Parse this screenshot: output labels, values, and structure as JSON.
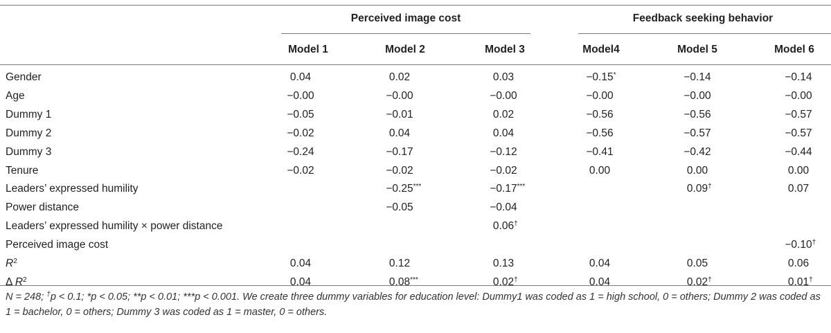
{
  "table": {
    "group_headers": [
      "Perceived image cost",
      "Feedback seeking behavior"
    ],
    "model_headers": [
      "Model 1",
      "Model 2",
      "Model 3",
      "Model4",
      "Model 5",
      "Model 6"
    ],
    "rows": [
      {
        "label": "Gender",
        "label_sup": "",
        "cells": [
          [
            "0.04",
            ""
          ],
          [
            "0.02",
            ""
          ],
          [
            "0.03",
            ""
          ],
          [
            "−0.15",
            "*"
          ],
          [
            "−0.14",
            ""
          ],
          [
            "−0.14",
            ""
          ]
        ]
      },
      {
        "label": "Age",
        "label_sup": "",
        "cells": [
          [
            "−0.00",
            ""
          ],
          [
            "−0.00",
            ""
          ],
          [
            "−0.00",
            ""
          ],
          [
            "−0.00",
            ""
          ],
          [
            "−0.00",
            ""
          ],
          [
            "−0.00",
            ""
          ]
        ]
      },
      {
        "label": "Dummy 1",
        "label_sup": "",
        "cells": [
          [
            "−0.05",
            ""
          ],
          [
            "−0.01",
            ""
          ],
          [
            "0.02",
            ""
          ],
          [
            "−0.56",
            ""
          ],
          [
            "−0.56",
            ""
          ],
          [
            "−0.57",
            ""
          ]
        ]
      },
      {
        "label": "Dummy 2",
        "label_sup": "",
        "cells": [
          [
            "−0.02",
            ""
          ],
          [
            "0.04",
            ""
          ],
          [
            "0.04",
            ""
          ],
          [
            "−0.56",
            ""
          ],
          [
            "−0.57",
            ""
          ],
          [
            "−0.57",
            ""
          ]
        ]
      },
      {
        "label": "Dummy 3",
        "label_sup": "",
        "cells": [
          [
            "−0.24",
            ""
          ],
          [
            "−0.17",
            ""
          ],
          [
            "−0.12",
            ""
          ],
          [
            "−0.41",
            ""
          ],
          [
            "−0.42",
            ""
          ],
          [
            "−0.44",
            ""
          ]
        ]
      },
      {
        "label": "Tenure",
        "label_sup": "",
        "cells": [
          [
            "−0.02",
            ""
          ],
          [
            "−0.02",
            ""
          ],
          [
            "−0.02",
            ""
          ],
          [
            "0.00",
            ""
          ],
          [
            "0.00",
            ""
          ],
          [
            "0.00",
            ""
          ]
        ]
      },
      {
        "label": "Leaders’ expressed humility",
        "label_sup": "",
        "cells": [
          [
            "",
            ""
          ],
          [
            "−0.25",
            "***"
          ],
          [
            "−0.17",
            "***"
          ],
          [
            "",
            ""
          ],
          [
            "0.09",
            "†"
          ],
          [
            "0.07",
            ""
          ]
        ]
      },
      {
        "label": "Power distance",
        "label_sup": "",
        "cells": [
          [
            "",
            ""
          ],
          [
            "−0.05",
            ""
          ],
          [
            "−0.04",
            ""
          ],
          [
            "",
            ""
          ],
          [
            "",
            ""
          ],
          [
            "",
            ""
          ]
        ]
      },
      {
        "label": "Leaders’ expressed humility × power distance",
        "label_sup": "",
        "cells": [
          [
            "",
            ""
          ],
          [
            "",
            ""
          ],
          [
            "0.06",
            "†"
          ],
          [
            "",
            ""
          ],
          [
            "",
            ""
          ],
          [
            "",
            ""
          ]
        ]
      },
      {
        "label": "Perceived image cost",
        "label_sup": "",
        "cells": [
          [
            "",
            ""
          ],
          [
            "",
            ""
          ],
          [
            "",
            ""
          ],
          [
            "",
            ""
          ],
          [
            "",
            ""
          ],
          [
            "−0.10",
            "†"
          ]
        ]
      },
      {
        "label": "R",
        "label_sup": "2",
        "label_italic": true,
        "cells": [
          [
            "0.04",
            ""
          ],
          [
            "0.12",
            ""
          ],
          [
            "0.13",
            ""
          ],
          [
            "0.04",
            ""
          ],
          [
            "0.05",
            ""
          ],
          [
            "0.06",
            ""
          ]
        ]
      },
      {
        "label": "Δ R",
        "label_sup": "2",
        "label_italic": true,
        "cells": [
          [
            "0.04",
            ""
          ],
          [
            "0.08",
            "***"
          ],
          [
            "0.02",
            "†"
          ],
          [
            "0.04",
            ""
          ],
          [
            "0.02",
            "†"
          ],
          [
            "0.01",
            "†"
          ]
        ]
      }
    ],
    "note": "N = 248; †p < 0.1; *p < 0.05; **p < 0.01; ***p < 0.001. We create three dummy variables for education level: Dummy1 was coded as 1 = high school, 0 = others; Dummy 2 was coded as 1 = bachelor, 0 = others; Dummy 3 was coded as 1 = master, 0 = others."
  }
}
